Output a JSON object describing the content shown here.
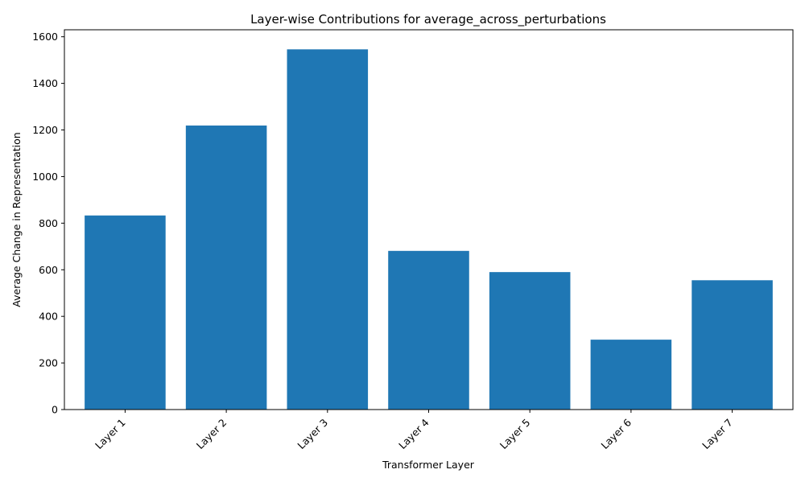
{
  "chart_data": {
    "type": "bar",
    "title": "Layer-wise Contributions for average_across_perturbations",
    "xlabel": "Transformer Layer",
    "ylabel": "Average Change in Representation",
    "categories": [
      "Layer 1",
      "Layer 2",
      "Layer 3",
      "Layer 4",
      "Layer 5",
      "Layer 6",
      "Layer 7"
    ],
    "values": [
      833,
      1219,
      1546,
      681,
      590,
      300,
      555
    ],
    "ylim": [
      0,
      1630
    ],
    "yticks": [
      0,
      200,
      400,
      600,
      800,
      1000,
      1200,
      1400,
      1600
    ],
    "bar_color": "#1f77b4",
    "grid": false,
    "legend": "none"
  }
}
